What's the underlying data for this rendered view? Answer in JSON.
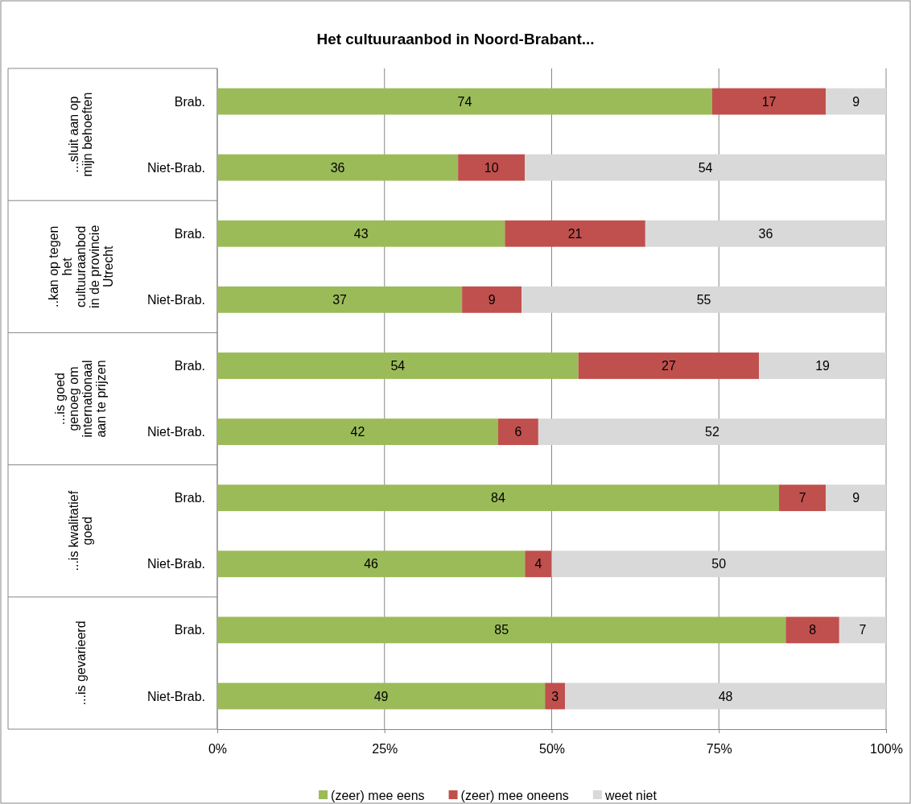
{
  "chart_data": {
    "type": "bar",
    "orientation": "horizontal",
    "stacked": true,
    "title": "Het cultuuraanbod in Noord-Brabant...",
    "categories": [
      "Brab.",
      "Niet-Brab.",
      "Brab.",
      "Niet-Brab.",
      "Brab.",
      "Niet-Brab.",
      "Brab.",
      "Niet-Brab.",
      "Brab.",
      "Niet-Brab."
    ],
    "annotations": [
      "...sluit aan op mijn behoeften",
      "..kan op tegen het cultuuraanbod in de provincie Utrecht",
      "...is goed genoeg om internationaal aan te prijzen",
      "...is kwalitatief goed",
      "...is gevarieerd"
    ],
    "series": [
      {
        "name": "(zeer) mee eens",
        "color": "#9bbb59",
        "values": [
          74,
          36,
          43,
          36.6,
          54,
          42,
          84,
          46,
          85,
          49
        ],
        "value_labels": [
          "74",
          "36",
          "43",
          "37",
          "54",
          "42",
          "84",
          "46",
          "85",
          "49"
        ]
      },
      {
        "name": "(zeer) mee oneens",
        "color": "#c0504d",
        "values": [
          17,
          10,
          21,
          8.9,
          27,
          6,
          7,
          4,
          8,
          3
        ],
        "value_labels": [
          "17",
          "10",
          "21",
          "9",
          "27",
          "6",
          "7",
          "4",
          "8",
          "3"
        ]
      },
      {
        "name": "weet niet",
        "color": "#d9d9d9",
        "values": [
          9,
          54,
          36,
          54.5,
          19,
          52,
          9,
          50,
          7,
          48
        ],
        "value_labels": [
          "9",
          "54",
          "36",
          "55",
          "19",
          "52",
          "9",
          "50",
          "7",
          "48"
        ]
      }
    ],
    "xlim": [
      0,
      100
    ],
    "xticks": [
      {
        "value": 0,
        "label": "0%"
      },
      {
        "value": 25,
        "label": "25%"
      },
      {
        "value": 50,
        "label": "50%"
      },
      {
        "value": 75,
        "label": "75%"
      },
      {
        "value": 100,
        "label": "100%"
      }
    ],
    "grid": "x",
    "legend": "bottom"
  }
}
